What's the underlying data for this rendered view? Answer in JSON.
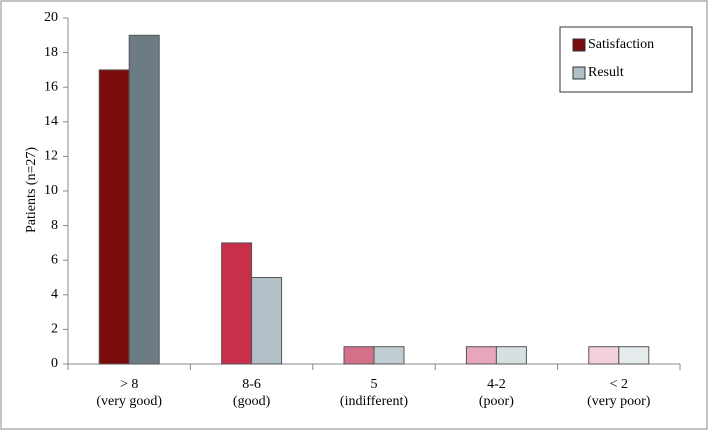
{
  "chart_data": {
    "type": "bar",
    "y_label": "Patients (n=27)",
    "categories": [
      [
        "> 8",
        "(very good)"
      ],
      [
        "8-6",
        "(good)"
      ],
      [
        "5",
        "(indifferent)"
      ],
      [
        "4-2",
        "(poor)"
      ],
      [
        "< 2",
        "(very poor)"
      ]
    ],
    "series": [
      {
        "name": "Satisfaction",
        "color": "#7a0b0b",
        "colors": [
          "#7a0b0b",
          "#c8304a",
          "#d4708a",
          "#e8a6bb",
          "#f3d0da"
        ],
        "values": [
          17,
          7,
          1,
          1,
          1
        ]
      },
      {
        "name": "Result",
        "color": "#aebfc6",
        "colors": [
          "#6c7c85",
          "#b1c1c7",
          "#bfccd1",
          "#d6dfe1",
          "#e6ecee"
        ],
        "values": [
          19,
          5,
          1,
          1,
          1
        ]
      }
    ],
    "ylim": [
      0,
      20
    ],
    "yticks": [
      0,
      2,
      4,
      6,
      8,
      10,
      12,
      14,
      16,
      18,
      20
    ],
    "legend": "upper right"
  }
}
